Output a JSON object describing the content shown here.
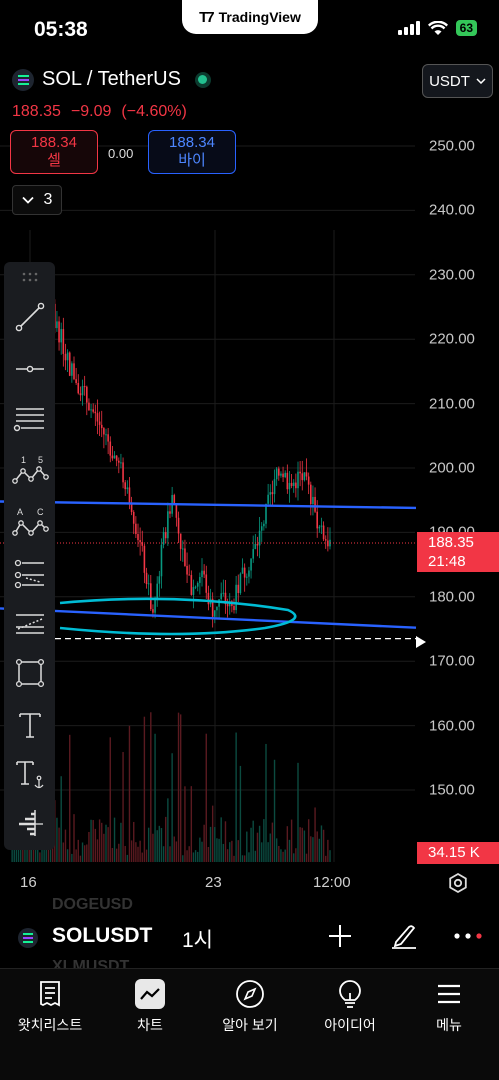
{
  "status_bar": {
    "time": "05:38",
    "battery": "63"
  },
  "app_brand": "TradingView",
  "header": {
    "symbol_title": "SOL / TetherUS",
    "last_price": "188.35",
    "change": "−9.09",
    "change_pct": "(−4.60%)",
    "currency": "USDT",
    "sell_price": "188.34",
    "sell_label": "셀",
    "spread": "0.00",
    "buy_price": "188.34",
    "buy_label": "바이",
    "collapse_count": "3"
  },
  "chart_data": {
    "type": "candlestick",
    "title": "",
    "y_axis_ticks": [
      "250.00",
      "240.00",
      "230.00",
      "220.00",
      "210.00",
      "200.00",
      "190.00",
      "180.00",
      "170.00",
      "160.00",
      "150.00"
    ],
    "x_axis_ticks": [
      "16",
      "23",
      "12:00"
    ],
    "ylim": [
      146,
      254
    ],
    "last_price_label": "188.35",
    "countdown": "21:48",
    "volume_label": "34.15 K",
    "interval": "1시",
    "close_path": [
      {
        "t": 0,
        "c": 214
      },
      {
        "t": 4,
        "c": 221
      },
      {
        "t": 8,
        "c": 226
      },
      {
        "t": 12,
        "c": 216
      },
      {
        "t": 16,
        "c": 210
      },
      {
        "t": 20,
        "c": 204
      },
      {
        "t": 24,
        "c": 197
      },
      {
        "t": 27,
        "c": 186
      },
      {
        "t": 29,
        "c": 177
      },
      {
        "t": 31,
        "c": 188
      },
      {
        "t": 33,
        "c": 196
      },
      {
        "t": 35,
        "c": 187
      },
      {
        "t": 37,
        "c": 181
      },
      {
        "t": 39,
        "c": 184
      },
      {
        "t": 41,
        "c": 178
      },
      {
        "t": 43,
        "c": 180
      },
      {
        "t": 45,
        "c": 178
      },
      {
        "t": 47,
        "c": 183
      },
      {
        "t": 49,
        "c": 186
      },
      {
        "t": 51,
        "c": 190
      },
      {
        "t": 53,
        "c": 196
      },
      {
        "t": 55,
        "c": 200
      },
      {
        "t": 57,
        "c": 197
      },
      {
        "t": 59,
        "c": 199
      },
      {
        "t": 61,
        "c": 196
      },
      {
        "t": 63,
        "c": 190
      },
      {
        "t": 65,
        "c": 188.35
      }
    ],
    "horizontal_lines": [
      {
        "name": "resistance",
        "y_start": 194.8,
        "y_end": 193.8,
        "color": "#2962ff"
      },
      {
        "name": "support",
        "y_start": 178.2,
        "y_end": 175.2,
        "color": "#2962ff"
      },
      {
        "name": "alert-dashed",
        "y": 173.5,
        "color": "#ffffff"
      }
    ],
    "ellipse_annotation": {
      "color": "#00bcd4"
    }
  },
  "toolbar_tools": [
    "trend-line",
    "horizontal-ray",
    "fib-retracement",
    "xabcd-pattern",
    "abcd-pattern",
    "pitchfork",
    "regression-trend",
    "rectangle",
    "text",
    "anchored-text",
    "volume-profile"
  ],
  "symbol_bar": {
    "ghost_above": "DOGEUSD",
    "symbol": "SOLUSDT",
    "ghost_below": "XLMUSDT"
  },
  "bottom_nav": [
    {
      "label": "왓치리스트",
      "icon": "watchlist-icon"
    },
    {
      "label": "차트",
      "icon": "chart-icon"
    },
    {
      "label": "알아 보기",
      "icon": "explore-icon"
    },
    {
      "label": "아이디어",
      "icon": "ideas-icon"
    },
    {
      "label": "메뉴",
      "icon": "menu-icon"
    }
  ],
  "colors": {
    "up": "#089981",
    "down": "#f23645",
    "accent": "#2962ff",
    "ellipse": "#00bcd4"
  }
}
